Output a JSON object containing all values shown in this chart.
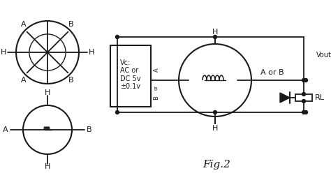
{
  "background_color": "#ffffff",
  "line_color": "#1a1a1a",
  "title": "Fig.2",
  "vc_text": "Vc:\nAC or\nDC 5v\n±0.1v",
  "label_A_or_B": "A or B",
  "label_Vout": "Vout",
  "label_RL": "RL",
  "fig_width": 474,
  "fig_height": 258
}
